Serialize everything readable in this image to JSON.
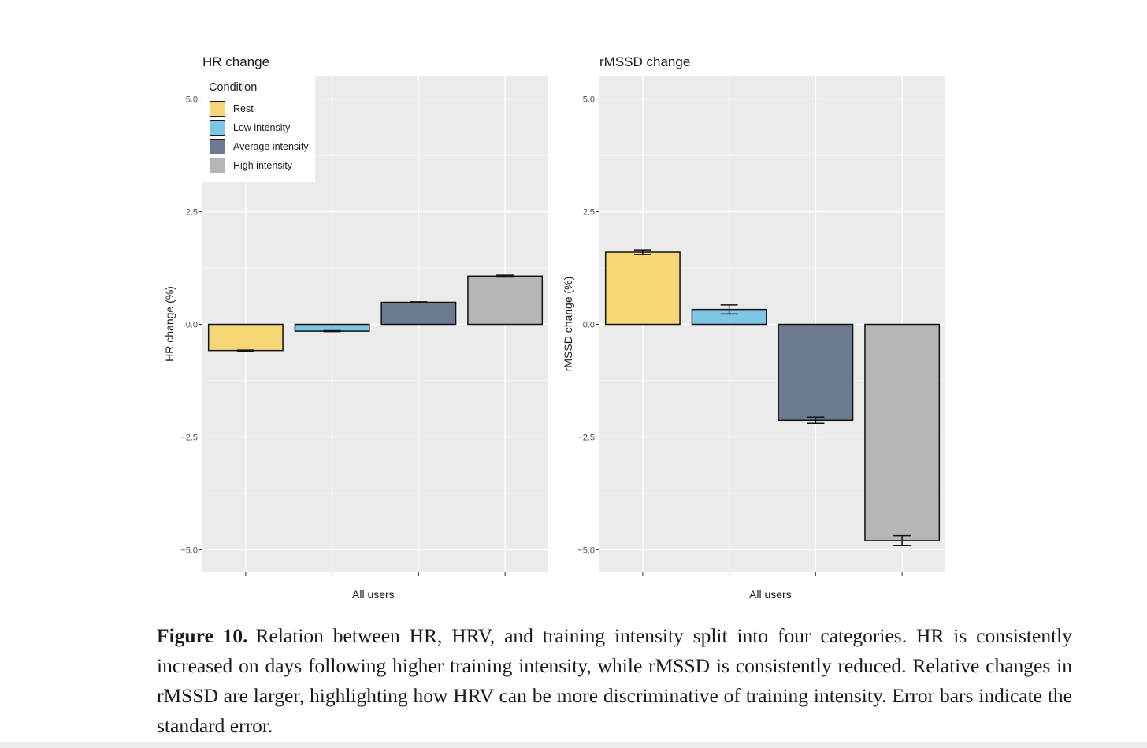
{
  "chart_data": [
    {
      "type": "bar",
      "title": "HR change",
      "xlabel": "All users",
      "ylabel": "HR change (%)",
      "ylim": [
        -5.5,
        5.5
      ],
      "yticks": [
        5.0,
        2.5,
        0.0,
        -2.5,
        -5.0
      ],
      "ytick_labels": [
        "5.0",
        "2.5",
        "0.0",
        "−2.5",
        "−5.0"
      ],
      "categories": [
        "Rest",
        "Low intensity",
        "Average intensity",
        "High intensity"
      ],
      "values": [
        -0.58,
        -0.15,
        0.49,
        1.07
      ],
      "errors": [
        0.01,
        0.01,
        0.01,
        0.02
      ],
      "legend": {
        "title": "Condition",
        "position": "top-left"
      }
    },
    {
      "type": "bar",
      "title": "rMSSD change",
      "xlabel": "All users",
      "ylabel": "rMSSD change (%)",
      "ylim": [
        -5.5,
        5.5
      ],
      "yticks": [
        5.0,
        2.5,
        0.0,
        -2.5,
        -5.0
      ],
      "ytick_labels": [
        "5.0",
        "2.5",
        "0.0",
        "−2.5",
        "−5.0"
      ],
      "categories": [
        "Rest",
        "Low intensity",
        "Average intensity",
        "High intensity"
      ],
      "values": [
        1.6,
        0.33,
        -2.13,
        -4.8
      ],
      "errors": [
        0.05,
        0.1,
        0.07,
        0.11
      ]
    }
  ],
  "legend": {
    "title": "Condition",
    "items": [
      {
        "label": "Rest",
        "color": "#f6d676"
      },
      {
        "label": "Low intensity",
        "color": "#7ec6e6"
      },
      {
        "label": "Average intensity",
        "color": "#6b7a90"
      },
      {
        "label": "High intensity",
        "color": "#b6b6b6"
      }
    ]
  },
  "colors": {
    "panel": "#ebebeb",
    "grid": "#ffffff",
    "bars": [
      "#f6d676",
      "#7ec6e6",
      "#6b7a90",
      "#b6b6b6"
    ]
  },
  "caption": {
    "label": "Figure 10.",
    "text": "Relation between HR, HRV, and training intensity split into four categories.  HR is consistently increased on days following higher training intensity, while rMSSD is consistently reduced. Relative changes in rMSSD are larger, highlighting how HRV can be more discriminative of training intensity. Error bars indicate the standard error."
  }
}
